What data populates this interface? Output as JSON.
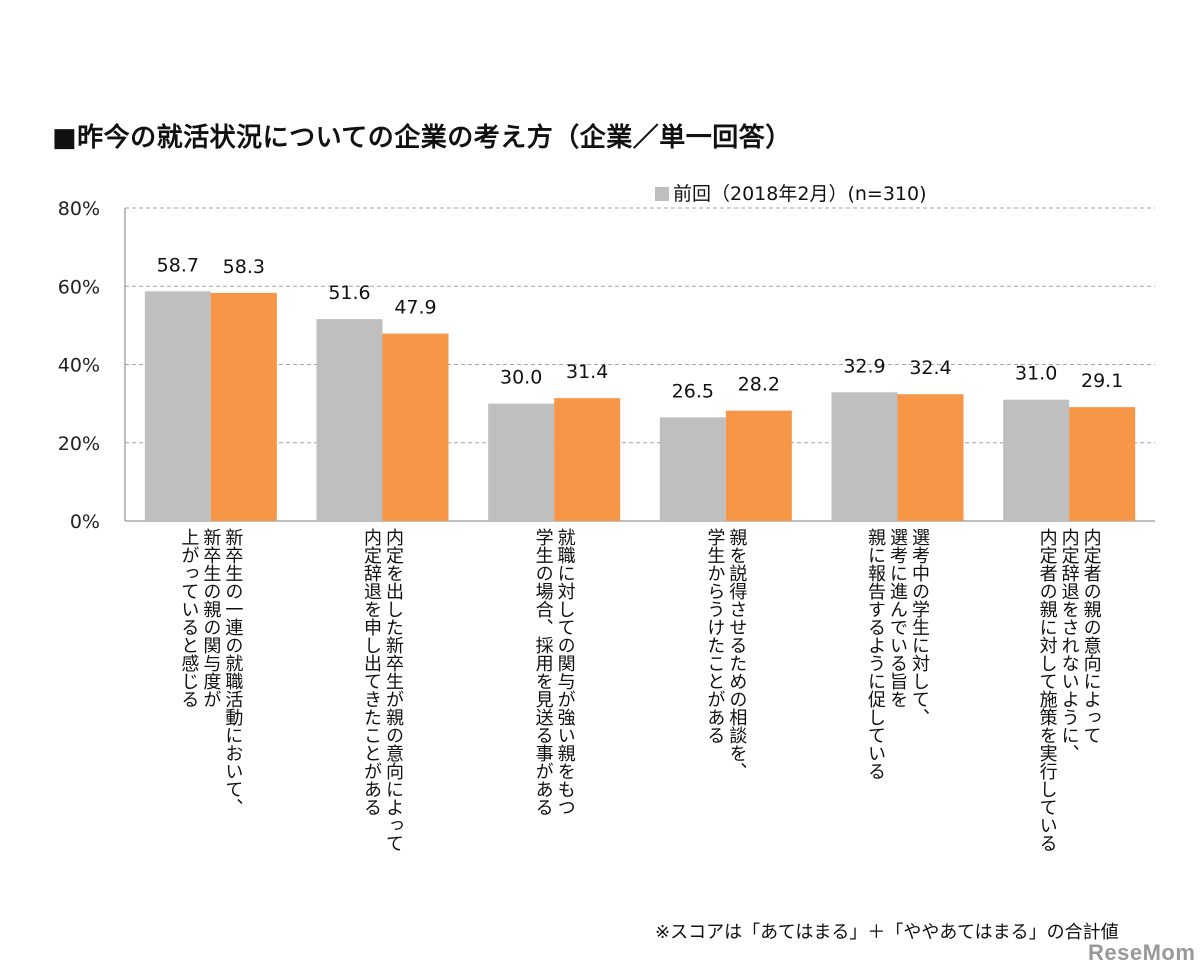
{
  "title": "■昨今の就活状況についての企業の考え方（企業／単一回答）",
  "legend": {
    "label": "前回（2018年2月）(n=310)",
    "color": "#bfbfbf"
  },
  "footnote": "※スコアは「あてはまる」＋「ややあてはまる」の合計値",
  "logo": "ReseMom",
  "colors": {
    "previous": "#bfbfbf",
    "current": "#f79646",
    "grid": "#a6a6a6"
  },
  "chart_data": {
    "type": "bar",
    "ylim": [
      0,
      80
    ],
    "yticks": [
      "0%",
      "20%",
      "40%",
      "60%",
      "80%"
    ],
    "grid": true,
    "legend_position": "top-right",
    "categories": [
      [
        "新卒生の一連の就職活動において、",
        "新卒生の親の関与度が",
        "上がっていると感じる"
      ],
      [
        "内定を出した新卒生が親の意向によって",
        "内定辞退を申し出てきたことがある"
      ],
      [
        "就職に対しての関与が強い親をもつ",
        "学生の場合、採用を見送る事がある"
      ],
      [
        "親を説得させるための相談を、",
        "学生からうけたことがある"
      ],
      [
        "選考中の学生に対して、",
        "選考に進んでいる旨を",
        "親に報告するように促している"
      ],
      [
        "内定者の親の意向によって",
        "内定辞退をされないように、",
        "内定者の親に対して施策を実行している"
      ]
    ],
    "series": [
      {
        "name": "前回（2018年2月）(n=310)",
        "values": [
          58.7,
          51.6,
          30.0,
          26.5,
          32.9,
          31.0
        ],
        "labels": [
          "58.7",
          "51.6",
          "30.0",
          "26.5",
          "32.9",
          "31.0"
        ]
      },
      {
        "values": [
          58.3,
          47.9,
          31.4,
          28.2,
          32.4,
          29.1
        ],
        "labels": [
          "58.3",
          "47.9",
          "31.4",
          "28.2",
          "32.4",
          "29.1"
        ]
      }
    ]
  }
}
